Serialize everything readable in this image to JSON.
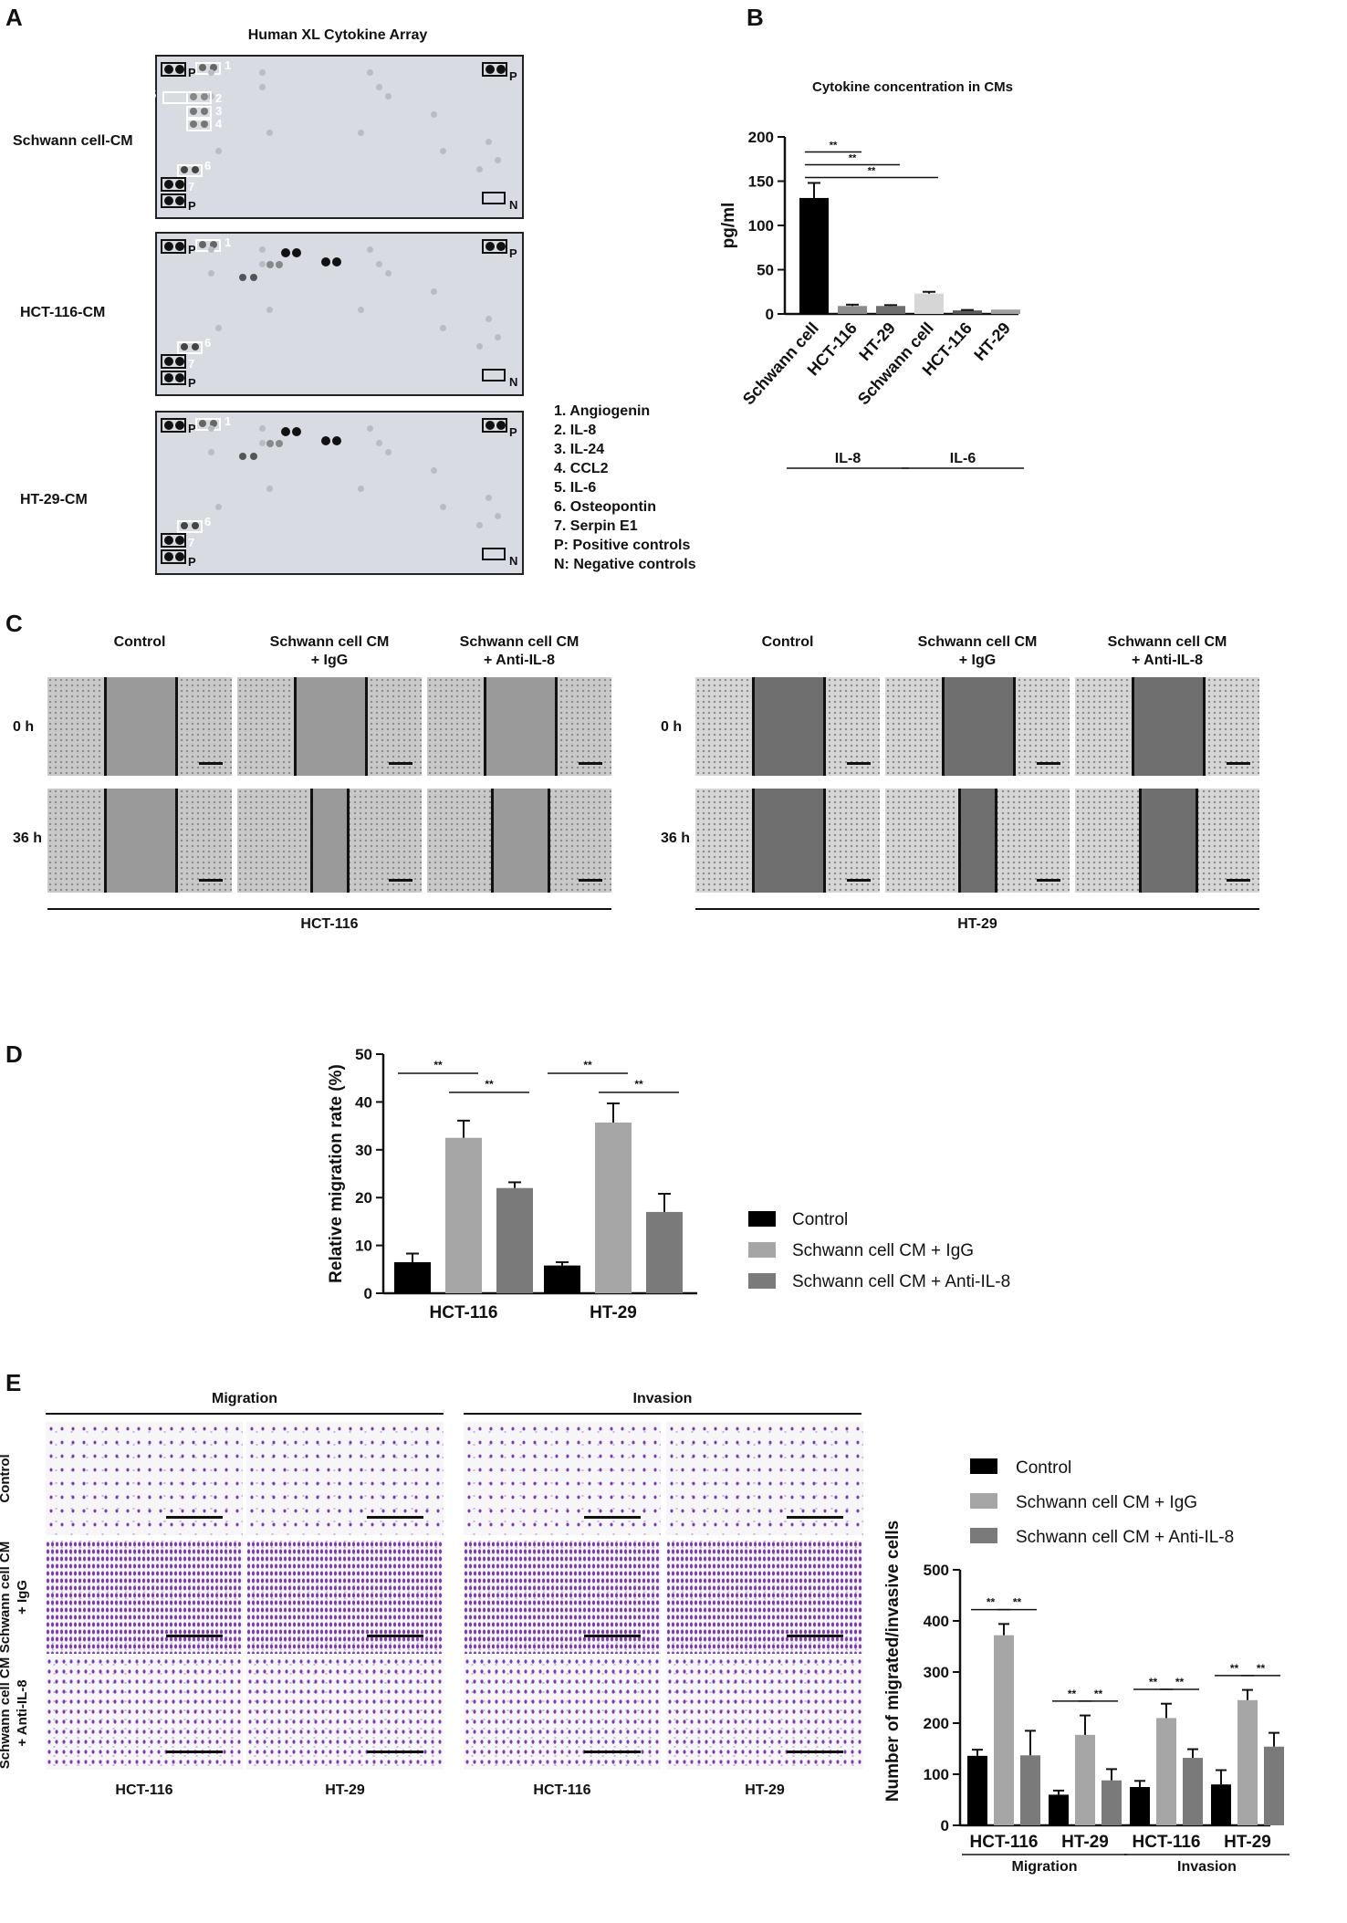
{
  "panel_letters": {
    "a": "A",
    "b": "B",
    "c": "C",
    "d": "D",
    "e": "E"
  },
  "panel_a": {
    "title": "Human XL Cytokine Array",
    "rows": [
      "Schwann cell-CM",
      "HCT-116-CM",
      "HT-29-CM"
    ],
    "legend": [
      "1. Angiogenin",
      "2. IL-8",
      "3. IL-24",
      "4. CCL2",
      "5. IL-6",
      "6. Osteopontin",
      "7. Serpin E1",
      "P: Positive controls",
      "N: Negative controls"
    ],
    "box_labels": {
      "one": "1",
      "two": "2",
      "three": "3",
      "four": "4",
      "five": "5",
      "six": "6",
      "seven": "7",
      "p": "P",
      "n": "N"
    }
  },
  "panel_c": {
    "columns_left": [
      "Control",
      "Schwann cell CM\n+ IgG",
      "Schwann cell CM\n+ Anti-IL-8"
    ],
    "columns_right": [
      "Control",
      "Schwann cell CM\n+ IgG",
      "Schwann cell CM\n+ Anti-IL-8"
    ],
    "rows": [
      "0 h",
      "36 h"
    ],
    "groups": [
      "HCT-116",
      "HT-29"
    ]
  },
  "panel_e": {
    "headers": [
      "Migration",
      "Invasion"
    ],
    "row_labels": [
      "Control",
      "Schwann cell CM\n+ IgG",
      "Schwann cell CM\n+ Anti-IL-8"
    ],
    "col_labels": [
      "HCT-116",
      "HT-29",
      "HCT-116",
      "HT-29"
    ]
  },
  "colors": {
    "control": "#000000",
    "igg": "#a6a6a6",
    "anti": "#7a7a7a",
    "crystal_violet": "#7a3bb5"
  },
  "chart_data": [
    {
      "id": "B",
      "type": "bar",
      "title": "Cytokine concentration in CMs",
      "xlabel": "",
      "ylabel": "pg/ml",
      "ylim": [
        0,
        200
      ],
      "yticks": [
        0,
        50,
        100,
        150,
        200
      ],
      "categories": [
        "Schwann cell",
        "HCT-116",
        "HT-29",
        "Schwann cell",
        "HCT-116",
        "HT-29"
      ],
      "values": [
        131,
        9,
        9,
        23,
        4,
        5
      ],
      "errors": [
        17,
        1.5,
        1,
        2,
        0.5,
        0
      ],
      "bar_colors": [
        "#000000",
        "#8c8c8c",
        "#6e6e6e",
        "#d6d6d6",
        "#5a5a5a",
        "#a0a0a0"
      ],
      "groups": [
        {
          "name": "IL-8",
          "categories": [
            0,
            1,
            2
          ]
        },
        {
          "name": "IL-6",
          "categories": [
            3,
            4,
            5
          ]
        }
      ],
      "significance": [
        {
          "from": 0,
          "to": 1,
          "label": "**"
        },
        {
          "from": 0,
          "to": 2,
          "label": "**"
        },
        {
          "from": 0,
          "to": 3,
          "label": "**"
        }
      ]
    },
    {
      "id": "D",
      "type": "bar",
      "title": "",
      "xlabel": "",
      "ylabel": "Relative migration rate (%)",
      "ylim": [
        0,
        50
      ],
      "yticks": [
        0,
        10,
        20,
        30,
        40,
        50
      ],
      "categories": [
        "HCT-116",
        "HT-29"
      ],
      "series": [
        {
          "name": "Control",
          "values": [
            6.5,
            5.8
          ],
          "errors": [
            1.8,
            0.7
          ]
        },
        {
          "name": "Schwann cell CM + IgG",
          "values": [
            32.5,
            35.7
          ],
          "errors": [
            3.6,
            4
          ]
        },
        {
          "name": "Schwann cell CM + Anti-IL-8",
          "values": [
            22,
            17
          ],
          "errors": [
            1.2,
            3.8
          ]
        }
      ],
      "significance": [
        {
          "category": 0,
          "from": 0,
          "to": 1,
          "label": "**"
        },
        {
          "category": 0,
          "from": 1,
          "to": 2,
          "label": "**"
        },
        {
          "category": 1,
          "from": 0,
          "to": 1,
          "label": "**"
        },
        {
          "category": 1,
          "from": 1,
          "to": 2,
          "label": "**"
        }
      ],
      "legend": "right"
    },
    {
      "id": "E",
      "type": "bar",
      "title": "",
      "xlabel": "",
      "ylabel": "Number of migrated/invasive cells",
      "ylim": [
        0,
        500
      ],
      "yticks": [
        0,
        100,
        200,
        300,
        400,
        500
      ],
      "categories": [
        "HCT-116",
        "HT-29",
        "HCT-116",
        "HT-29"
      ],
      "category_groups": [
        {
          "name": "Migration",
          "categories": [
            0,
            1
          ]
        },
        {
          "name": "Invasion",
          "categories": [
            2,
            3
          ]
        }
      ],
      "series": [
        {
          "name": "Control",
          "values": [
            136,
            60,
            75,
            80
          ],
          "errors": [
            12,
            8,
            12,
            28
          ]
        },
        {
          "name": "Schwann cell CM + IgG",
          "values": [
            372,
            177,
            210,
            245
          ],
          "errors": [
            22,
            38,
            28,
            20
          ]
        },
        {
          "name": "Schwann cell CM + Anti-IL-8",
          "values": [
            137,
            88,
            132,
            154
          ],
          "errors": [
            48,
            22,
            17,
            27
          ]
        }
      ],
      "significance_label": "**",
      "legend": "top"
    }
  ]
}
